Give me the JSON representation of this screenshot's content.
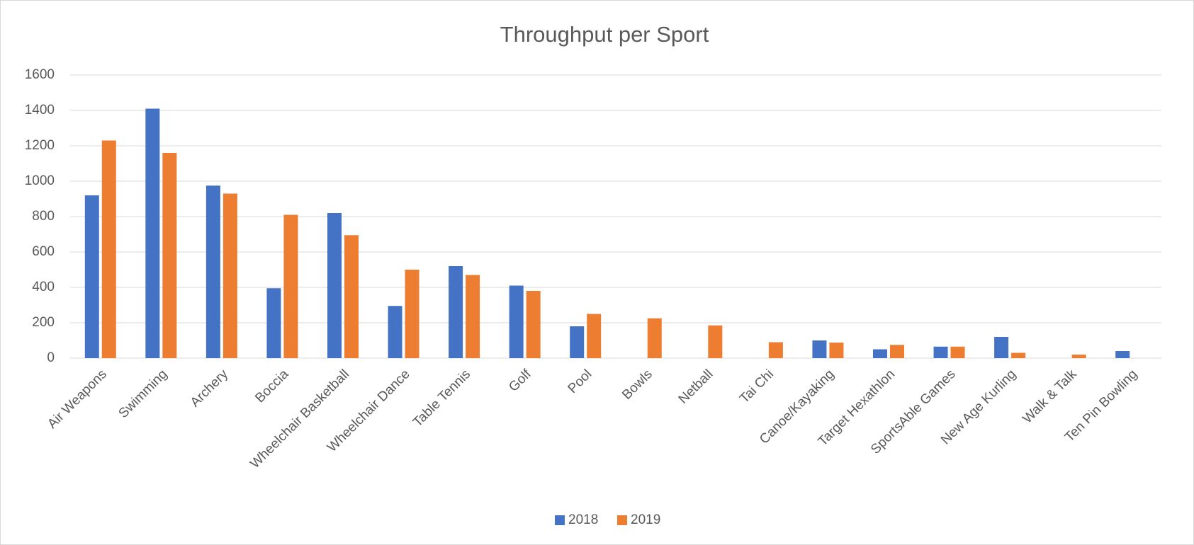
{
  "chart_data": {
    "type": "bar",
    "title": "Throughput per Sport",
    "categories": [
      "Air Weapons",
      "Swimming",
      "Archery",
      "Boccia",
      "Wheelchair Basketball",
      "Wheelchair Dance",
      "Table Tennis",
      "Golf",
      "Pool",
      "Bowls",
      "Netball",
      "Tai Chi",
      "Canoe/Kayaking",
      "Target Hexathlon",
      "SportsAble Games",
      "New Age Kurling",
      "Walk & Talk",
      "Ten Pin Bowling"
    ],
    "series": [
      {
        "name": "2018",
        "color": "#4472c4",
        "values": [
          920,
          1410,
          975,
          395,
          820,
          295,
          520,
          410,
          180,
          0,
          0,
          0,
          100,
          50,
          65,
          120,
          0,
          40
        ]
      },
      {
        "name": "2019",
        "color": "#ed7d31",
        "values": [
          1230,
          1160,
          930,
          810,
          695,
          500,
          470,
          380,
          250,
          225,
          185,
          90,
          88,
          75,
          65,
          30,
          20,
          0
        ]
      }
    ],
    "ylim": [
      0,
      1600
    ],
    "yticks": [
      0,
      200,
      400,
      600,
      800,
      1000,
      1200,
      1400,
      1600
    ],
    "grid": true,
    "legend": "bottom"
  }
}
